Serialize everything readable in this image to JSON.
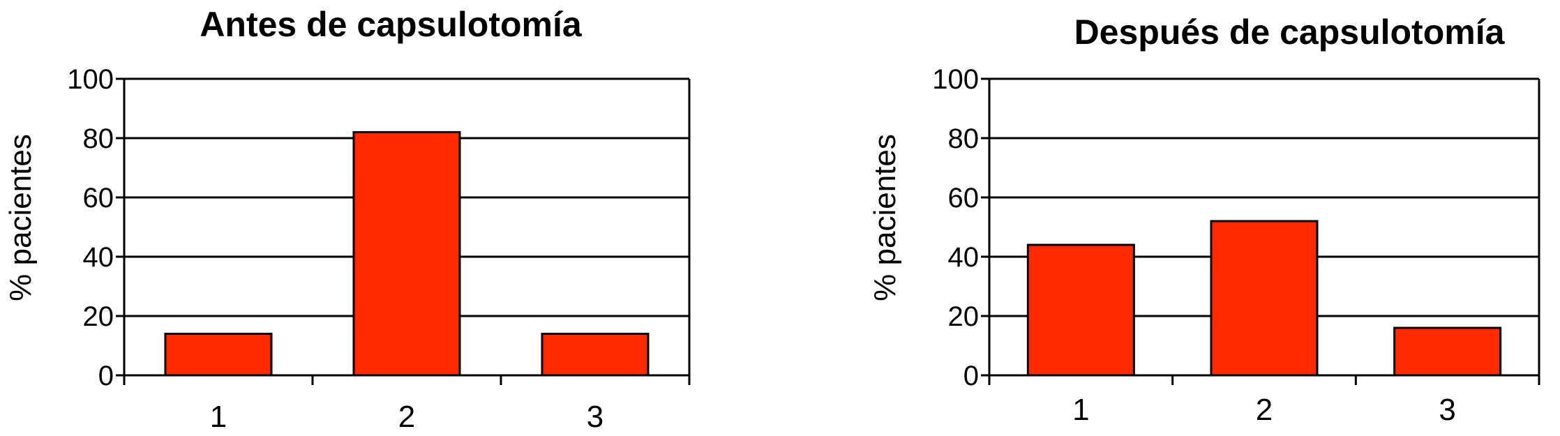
{
  "colors": {
    "bar": "#ff2a00",
    "axis": "#000000",
    "background": "#ffffff"
  },
  "chart_data": [
    {
      "type": "bar",
      "title": "Antes de capsulotomía",
      "ylabel": "% pacientes",
      "xlabel": "",
      "categories": [
        "1",
        "2",
        "3"
      ],
      "values": [
        14,
        82,
        14
      ],
      "ylim": [
        0,
        100
      ],
      "yticks": [
        "0",
        "20",
        "40",
        "60",
        "80",
        "100"
      ],
      "grid": true,
      "legend": "none"
    },
    {
      "type": "bar",
      "title": "Después de capsulotomía",
      "ylabel": "% pacientes",
      "xlabel": "",
      "categories": [
        "1",
        "2",
        "3"
      ],
      "values": [
        44,
        52,
        16
      ],
      "ylim": [
        0,
        100
      ],
      "yticks": [
        "0",
        "20",
        "40",
        "60",
        "80",
        "100"
      ],
      "grid": true,
      "legend": "none"
    }
  ]
}
